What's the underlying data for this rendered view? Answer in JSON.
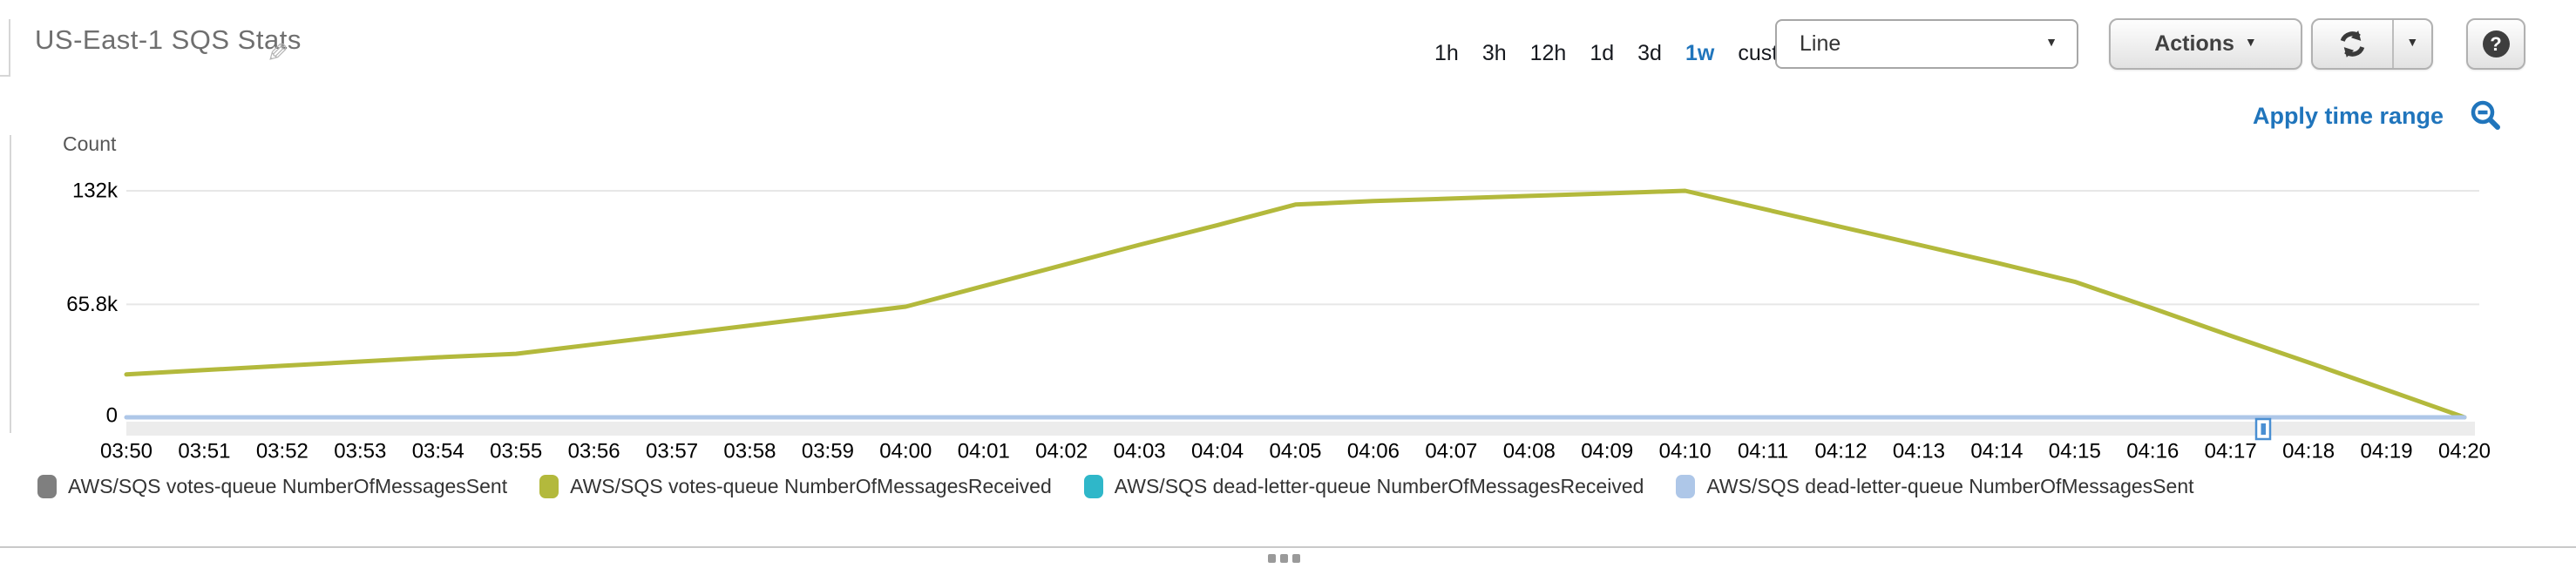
{
  "header": {
    "title": "US-East-1 SQS Stats"
  },
  "icons": {
    "pencil": "✎",
    "caret": "▼",
    "help": "?"
  },
  "toolbar": {
    "ranges": [
      "1h",
      "3h",
      "12h",
      "1d",
      "3d",
      "1w"
    ],
    "active_range": "1w",
    "custom_label": "custom",
    "chart_type_selected": "Line",
    "actions_label": "Actions"
  },
  "subtoolbar": {
    "apply_time_range": "Apply time range"
  },
  "chart_data": {
    "type": "line",
    "title": "US-East-1 SQS Stats",
    "ylabel": "Count",
    "ylim": [
      0,
      132000
    ],
    "grid": true,
    "legend_position": "bottom",
    "y_ticks": [
      "132k",
      "65.8k",
      "0"
    ],
    "y_tick_values": [
      132000,
      65800,
      0
    ],
    "x": [
      "03:50",
      "03:51",
      "03:52",
      "03:53",
      "03:54",
      "03:55",
      "03:56",
      "03:57",
      "03:58",
      "03:59",
      "04:00",
      "04:01",
      "04:02",
      "04:03",
      "04:04",
      "04:05",
      "04:06",
      "04:07",
      "04:08",
      "04:09",
      "04:10",
      "04:11",
      "04:12",
      "04:13",
      "04:14",
      "04:15",
      "04:16",
      "04:17",
      "04:18",
      "04:19",
      "04:20"
    ],
    "series": [
      {
        "name": "AWS/SQS votes-queue NumberOfMessagesSent",
        "color": "#7f7f7f",
        "values": [
          0,
          0,
          0,
          0,
          0,
          0,
          0,
          0,
          0,
          0,
          0,
          0,
          0,
          0,
          0,
          0,
          0,
          0,
          0,
          0,
          0,
          0,
          0,
          0,
          0,
          0,
          0,
          0,
          0,
          0,
          0
        ]
      },
      {
        "name": "AWS/SQS votes-queue NumberOfMessagesReceived",
        "color": "#b3b93c",
        "values": [
          25000,
          27500,
          30000,
          32500,
          35000,
          37000,
          42500,
          48000,
          53500,
          59000,
          64500,
          76500,
          88500,
          100500,
          112000,
          124000,
          126000,
          127500,
          129000,
          130500,
          132000,
          121500,
          111000,
          100500,
          90000,
          79000,
          63500,
          47500,
          32000,
          16000,
          0
        ]
      },
      {
        "name": "AWS/SQS dead-letter-queue NumberOfMessagesReceived",
        "color": "#2fb7c9",
        "values": [
          0,
          0,
          0,
          0,
          0,
          0,
          0,
          0,
          0,
          0,
          0,
          0,
          0,
          0,
          0,
          0,
          0,
          0,
          0,
          0,
          0,
          0,
          0,
          0,
          0,
          0,
          0,
          0,
          0,
          0,
          0
        ]
      },
      {
        "name": "AWS/SQS dead-letter-queue NumberOfMessagesSent",
        "color": "#aec7e8",
        "values": [
          0,
          0,
          0,
          0,
          0,
          0,
          0,
          0,
          0,
          0,
          0,
          0,
          0,
          0,
          0,
          0,
          0,
          0,
          0,
          0,
          0,
          0,
          0,
          0,
          0,
          0,
          0,
          0,
          0,
          0,
          0
        ]
      }
    ],
    "scrubber": {
      "thumb_position": "04:17.3"
    }
  }
}
